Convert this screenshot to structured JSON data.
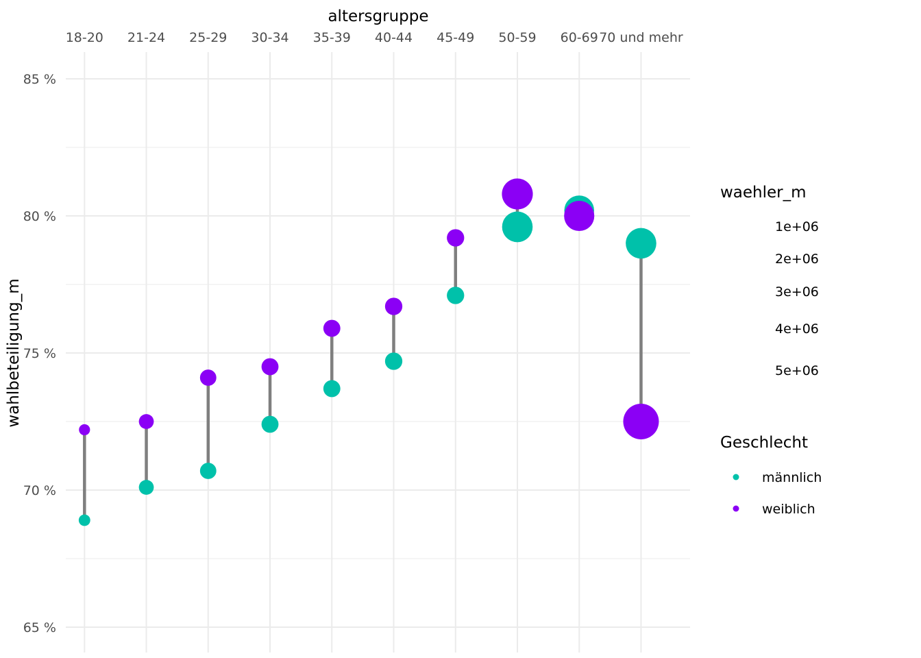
{
  "chart_data": {
    "type": "scatter",
    "title": "",
    "xlabel": "altersgruppe",
    "ylabel": "wahlbeteiligung_m",
    "x_axis_position": "top",
    "categories": [
      "18-20",
      "21-24",
      "25-29",
      "30-34",
      "35-39",
      "40-44",
      "45-49",
      "50-59",
      "60-69",
      "70 und mehr"
    ],
    "ylim": [
      64.6,
      86
    ],
    "y_ticks": [
      65,
      70,
      75,
      80,
      85
    ],
    "y_tick_labels": [
      "65 %",
      "70 %",
      "75 %",
      "80 %",
      "85 %"
    ],
    "grid": true,
    "series": [
      {
        "name": "männlich",
        "color": "#00C1AA",
        "values": [
          68.9,
          70.1,
          70.7,
          72.4,
          73.7,
          74.7,
          77.1,
          79.6,
          80.2,
          79.0
        ],
        "waehler_m": [
          600000,
          1000000,
          1200000,
          1300000,
          1300000,
          1350000,
          1350000,
          4200000,
          4000000,
          4200000
        ]
      },
      {
        "name": "weiblich",
        "color": "#8B00F5",
        "values": [
          72.2,
          72.5,
          74.1,
          74.5,
          75.9,
          76.7,
          79.2,
          80.8,
          80.0,
          72.5
        ],
        "waehler_m": [
          550000,
          1000000,
          1200000,
          1300000,
          1300000,
          1350000,
          1350000,
          4300000,
          4100000,
          5700000
        ]
      }
    ],
    "segment_color": "#7F7F7F",
    "size_legend": {
      "title": "waehler_m",
      "labels": [
        "1e+06",
        "2e+06",
        "3e+06",
        "4e+06",
        "5e+06"
      ],
      "values": [
        1000000,
        2000000,
        3000000,
        4000000,
        5000000
      ]
    },
    "color_legend": {
      "title": "Geschlecht",
      "entries": [
        "männlich",
        "weiblich"
      ]
    },
    "legend_placement": "right"
  }
}
